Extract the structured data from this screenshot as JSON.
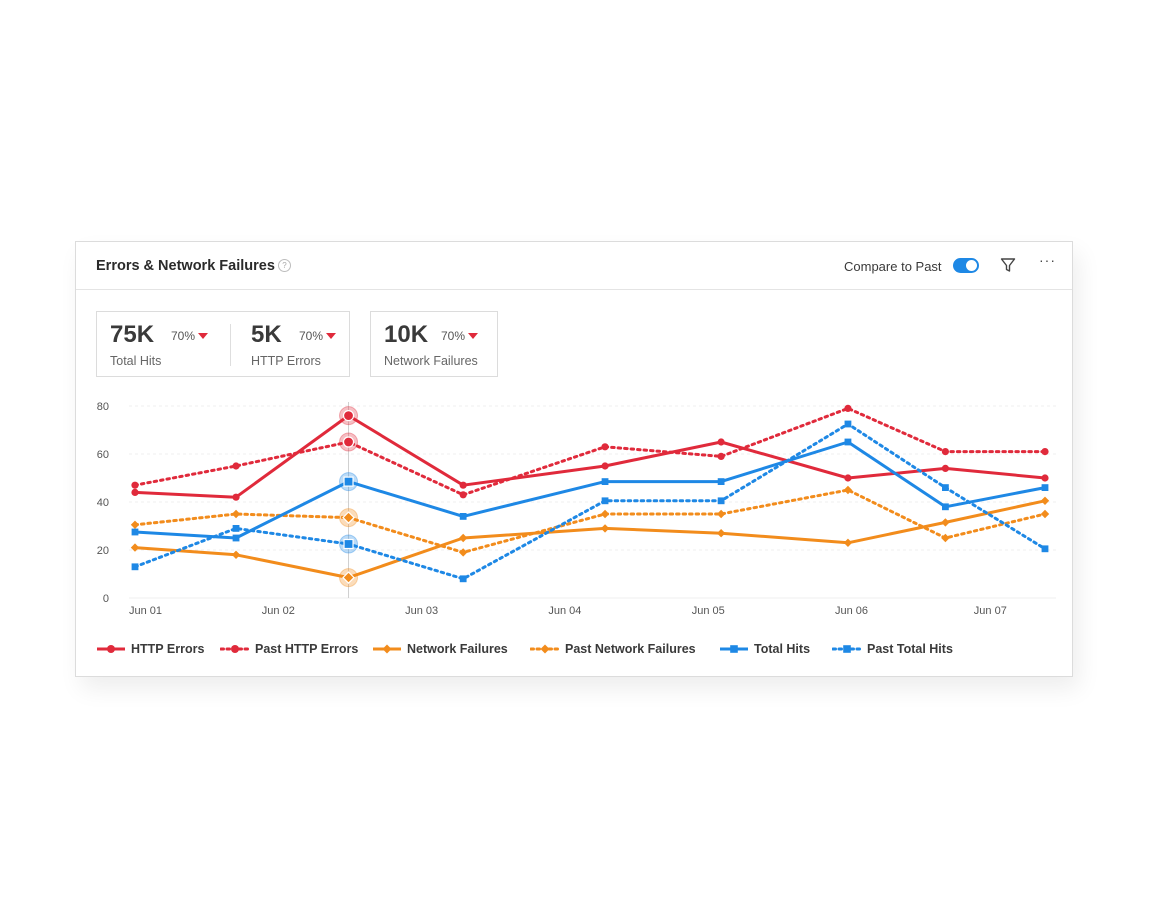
{
  "header": {
    "title": "Errors & Network Failures",
    "help_icon": "question-circle-icon",
    "compare_label": "Compare to Past",
    "compare_enabled": true,
    "filter_icon": "filter-icon",
    "more_icon": "more-horizontal-icon",
    "more_glyph": "···"
  },
  "kpis": [
    {
      "value": "75K",
      "change": "70%",
      "label": "Total Hits"
    },
    {
      "value": "5K",
      "change": "70%",
      "label": "HTTP Errors"
    },
    {
      "value": "10K",
      "change": "70%",
      "label": "Network Failures"
    }
  ],
  "colors": {
    "red": "#e02a3b",
    "orange": "#f28c1c",
    "blue": "#1e88e5",
    "accent": "#1e88e5"
  },
  "chart_data": {
    "type": "line",
    "x": [
      1,
      2,
      3,
      4,
      5,
      6,
      7,
      8,
      9,
      10,
      11,
      12,
      13,
      14
    ],
    "x_ticks": [
      {
        "x": 1,
        "label": "Jun 01"
      },
      {
        "x": 3,
        "label": "Jun 02"
      },
      {
        "x": 5,
        "label": "Jun 03"
      },
      {
        "x": 7,
        "label": "Jun 04"
      },
      {
        "x": 9,
        "label": "Jun 05"
      },
      {
        "x": 11,
        "label": "Jun 06"
      },
      {
        "x": 13,
        "label": "Jun 07"
      }
    ],
    "xlim": [
      1,
      13.7
    ],
    "ylim": [
      0,
      80
    ],
    "yticks": [
      0,
      20,
      40,
      60,
      80
    ],
    "grid": true,
    "legend_position": "bottom",
    "highlight_x": 3.98,
    "series": [
      {
        "name": "HTTP Errors",
        "color": "#e02a3b",
        "style": "solid",
        "marker": "circle",
        "points": [
          [
            1,
            44
          ],
          [
            2.41,
            42
          ],
          [
            3.98,
            76
          ],
          [
            5.58,
            47
          ],
          [
            7.56,
            55
          ],
          [
            9.18,
            65
          ],
          [
            10.95,
            50
          ],
          [
            12.31,
            54
          ],
          [
            13.7,
            50
          ]
        ]
      },
      {
        "name": "Past HTTP Errors",
        "color": "#e02a3b",
        "style": "dotted",
        "marker": "circle",
        "points": [
          [
            1,
            47
          ],
          [
            2.41,
            55
          ],
          [
            3.98,
            65
          ],
          [
            5.58,
            43
          ],
          [
            7.56,
            63
          ],
          [
            9.18,
            59
          ],
          [
            10.95,
            79
          ],
          [
            12.31,
            61
          ],
          [
            13.7,
            61
          ]
        ]
      },
      {
        "name": "Network Failures",
        "color": "#f28c1c",
        "style": "solid",
        "marker": "diamond",
        "points": [
          [
            1,
            21
          ],
          [
            2.41,
            18
          ],
          [
            3.98,
            8.5
          ],
          [
            5.58,
            25
          ],
          [
            7.56,
            29
          ],
          [
            9.18,
            27
          ],
          [
            10.95,
            23
          ],
          [
            12.31,
            31.5
          ],
          [
            13.7,
            40.5
          ]
        ]
      },
      {
        "name": "Past Network Failures",
        "color": "#f28c1c",
        "style": "dotted",
        "marker": "diamond",
        "points": [
          [
            1,
            30.5
          ],
          [
            2.41,
            35
          ],
          [
            3.98,
            33.5
          ],
          [
            5.58,
            19
          ],
          [
            7.56,
            35
          ],
          [
            9.18,
            35
          ],
          [
            10.95,
            45
          ],
          [
            12.31,
            25
          ],
          [
            13.7,
            35
          ]
        ]
      },
      {
        "name": "Total Hits",
        "color": "#1e88e5",
        "style": "solid",
        "marker": "square",
        "points": [
          [
            1,
            27.5
          ],
          [
            2.41,
            25
          ],
          [
            3.98,
            48.5
          ],
          [
            5.58,
            34
          ],
          [
            7.56,
            48.5
          ],
          [
            9.18,
            48.5
          ],
          [
            10.95,
            65
          ],
          [
            12.31,
            38
          ],
          [
            13.7,
            46
          ]
        ]
      },
      {
        "name": "Past Total Hits",
        "color": "#1e88e5",
        "style": "dotted",
        "marker": "square",
        "points": [
          [
            1,
            13
          ],
          [
            2.41,
            29
          ],
          [
            3.98,
            22.5
          ],
          [
            5.58,
            8
          ],
          [
            7.56,
            40.5
          ],
          [
            9.18,
            40.5
          ],
          [
            10.95,
            72.5
          ],
          [
            12.31,
            46
          ],
          [
            13.7,
            20.5
          ]
        ]
      }
    ]
  }
}
